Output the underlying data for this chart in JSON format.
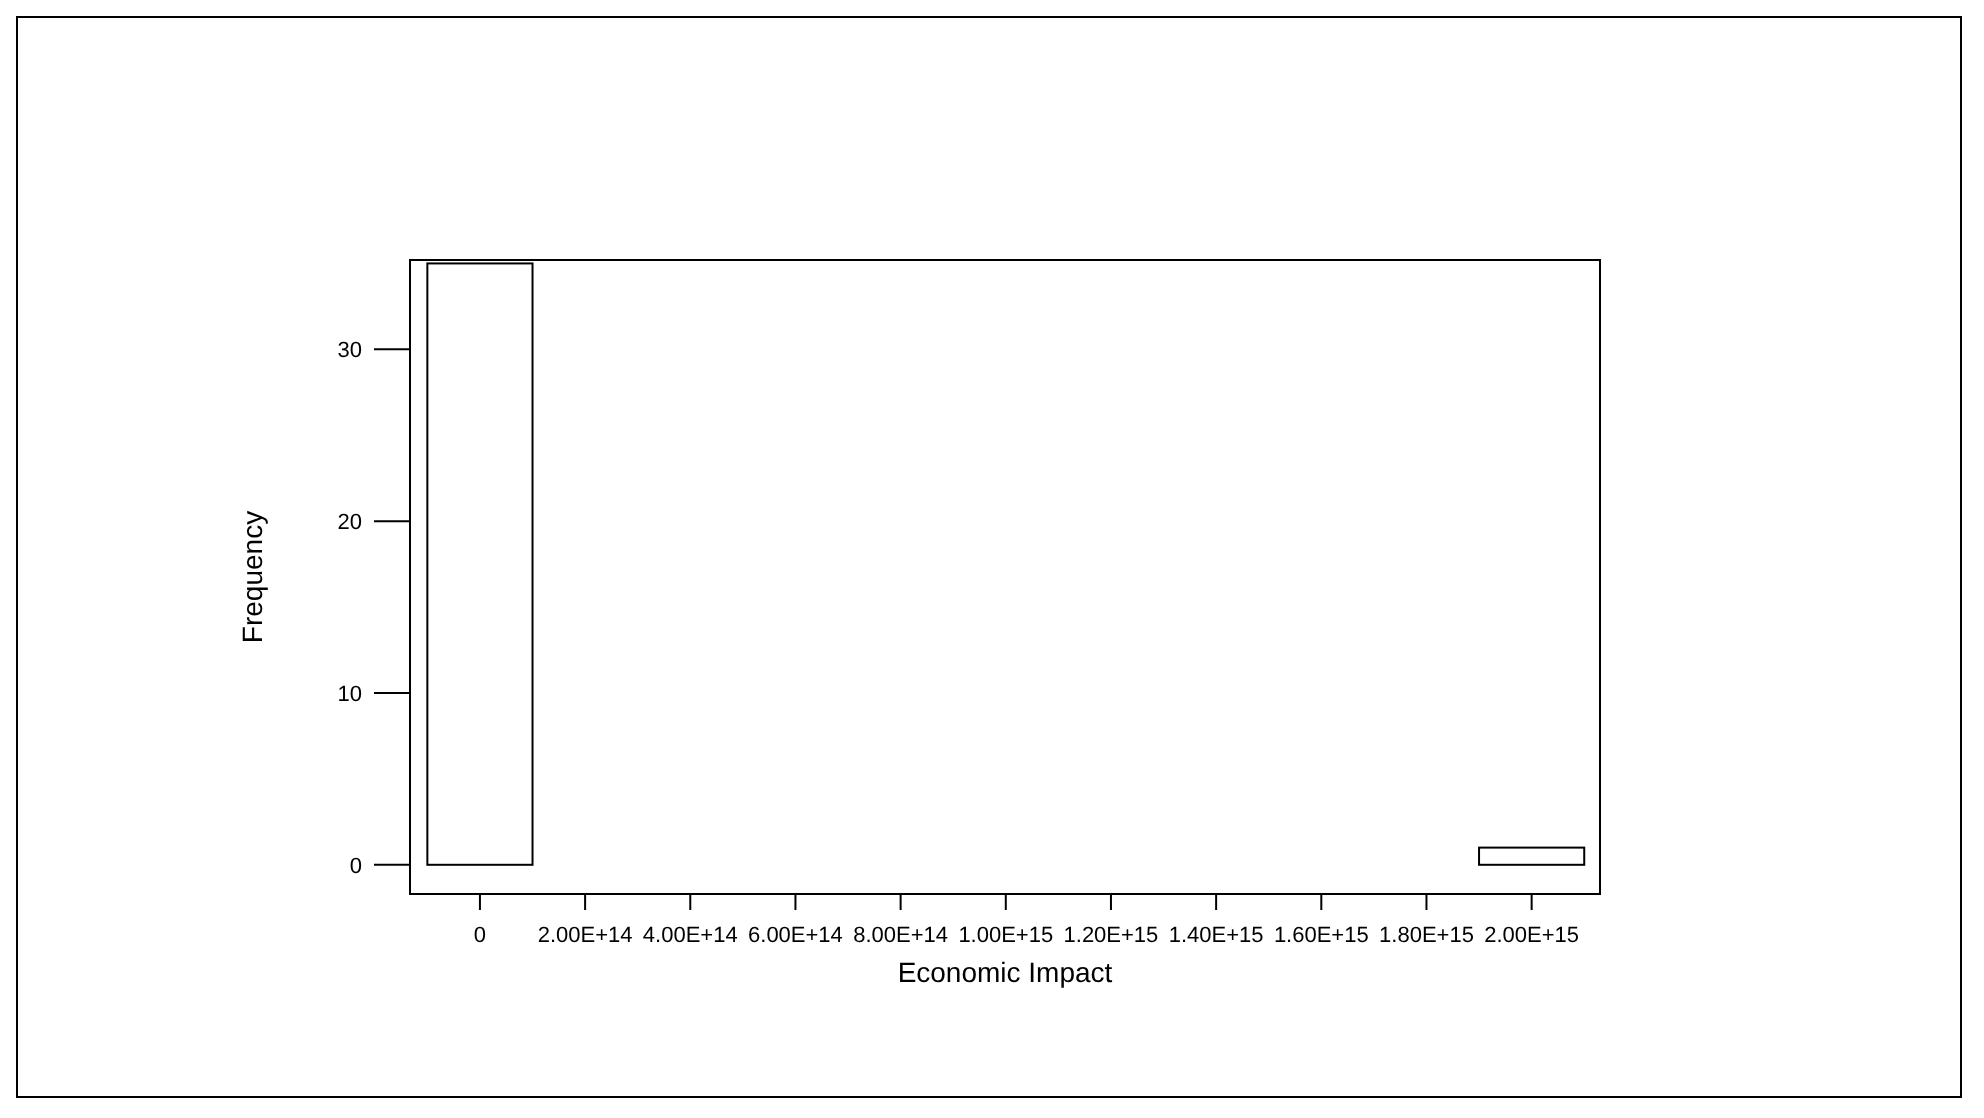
{
  "chart_data": {
    "type": "histogram",
    "xlabel": "Economic Impact",
    "ylabel": "Frequency",
    "bins": [
      -100000000000000.0,
      100000000000000.0,
      300000000000000.0,
      500000000000000.0,
      700000000000000.0,
      900000000000000.0,
      1100000000000000.0,
      1300000000000000.0,
      1500000000000000.0,
      1700000000000000.0,
      1900000000000000.0,
      2100000000000000.0
    ],
    "values": [
      35,
      0,
      0,
      0,
      0,
      0,
      0,
      0,
      0,
      0,
      1
    ],
    "color": "#ffffff",
    "xlim": [
      -133000000000000.0,
      2130000000000000.0
    ],
    "xticks": [
      0,
      {
        "value": 200000000000000.0,
        "label": "2.00E+14"
      },
      {
        "value": 400000000000000.0,
        "label": "4.00E+14"
      },
      {
        "value": 600000000000000.0,
        "label": "6.00E+14"
      },
      {
        "value": 800000000000000.0,
        "label": "8.00E+14"
      },
      {
        "value": 1000000000000000.0,
        "label": "1.00E+15"
      },
      {
        "value": 1200000000000000.0,
        "label": "1.20E+15"
      },
      {
        "value": 1400000000000000.0,
        "label": "1.40E+15"
      },
      {
        "value": 1600000000000000.0,
        "label": "1.60E+15"
      },
      {
        "value": 1800000000000000.0,
        "label": "1.80E+15"
      },
      {
        "value": 2000000000000000.0,
        "label": "2.00E+15"
      }
    ],
    "ylim": [
      -1.7,
      35.2
    ],
    "yticks": [
      0,
      10,
      20,
      30
    ],
    "grid": false
  }
}
